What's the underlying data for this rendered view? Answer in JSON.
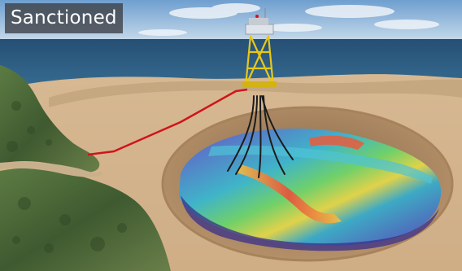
{
  "status_label": "Sanctioned",
  "colors": {
    "sky": "#8fb9df",
    "sea": "#2d5f86",
    "seabed": "#d8bc97",
    "land": "#4c6a3a",
    "pipeline": "#d0141a",
    "platform": "#e6c81c",
    "label_background": "#3c3e42"
  }
}
